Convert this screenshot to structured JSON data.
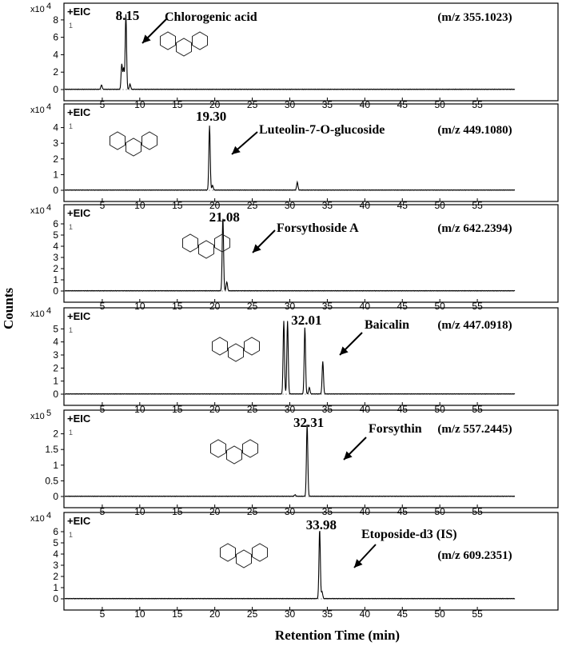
{
  "chart_data": {
    "type": "line",
    "xlabel": "Retention Time (min)",
    "ylabel": "Counts",
    "xlim": [
      0,
      60
    ],
    "xticks": [
      5,
      10,
      15,
      20,
      25,
      30,
      35,
      40,
      45,
      50,
      55
    ],
    "panels": [
      {
        "tag": "+EIC",
        "exponent_label": "x10",
        "exponent": "4",
        "ylim": [
          0,
          9
        ],
        "yticks": [
          0,
          2,
          4,
          6,
          8
        ],
        "compound": "Chlorogenic acid",
        "mz": "(m/z 355.1023)",
        "peak_time": 8.15,
        "peak_label": "8.15",
        "peaks": [
          [
            4.9,
            0.5
          ],
          [
            7.6,
            2.9
          ],
          [
            7.85,
            2.4
          ],
          [
            8.15,
            8.6
          ],
          [
            8.7,
            0.6
          ]
        ]
      },
      {
        "tag": "+EIC",
        "exponent_label": "x10",
        "exponent": "4",
        "ylim": [
          0,
          5
        ],
        "yticks": [
          0,
          1,
          2,
          3,
          4
        ],
        "compound": "Luteolin-7-O-glucoside",
        "mz": "(m/z 449.1080)",
        "peak_time": 19.3,
        "peak_label": "19.30",
        "peaks": [
          [
            19.3,
            4.1
          ],
          [
            19.7,
            0.3
          ],
          [
            31.0,
            0.5
          ]
        ]
      },
      {
        "tag": "+EIC",
        "exponent_label": "x10",
        "exponent": "4",
        "ylim": [
          0,
          7
        ],
        "yticks": [
          0,
          1,
          2,
          3,
          4,
          5,
          6
        ],
        "compound": "Forsythoside A",
        "mz": "(m/z 642.2394)",
        "peak_time": 21.08,
        "peak_label": "21.08",
        "peaks": [
          [
            21.08,
            6.6
          ],
          [
            21.6,
            0.8
          ]
        ]
      },
      {
        "tag": "+EIC",
        "exponent_label": "x10",
        "exponent": "4",
        "ylim": [
          0,
          6
        ],
        "yticks": [
          0,
          1,
          2,
          3,
          4,
          5
        ],
        "compound": "Baicalin",
        "mz": "(m/z 447.0918)",
        "peak_time": 32.01,
        "peak_label": "32.01",
        "peaks": [
          [
            29.2,
            5.6
          ],
          [
            29.7,
            5.6
          ],
          [
            32.01,
            5.1
          ],
          [
            32.6,
            0.5
          ],
          [
            34.4,
            2.5
          ]
        ]
      },
      {
        "tag": "+EIC",
        "exponent_label": "x10",
        "exponent": "5",
        "ylim": [
          0,
          2.5
        ],
        "yticks": [
          0,
          0.5,
          1,
          1.5,
          2
        ],
        "compound": "Forsythin",
        "mz": "(m/z 557.2445)",
        "peak_time": 32.31,
        "peak_label": "32.31",
        "peaks": [
          [
            30.7,
            0.05
          ],
          [
            32.31,
            2.3
          ]
        ]
      },
      {
        "tag": "+EIC",
        "exponent_label": "x10",
        "exponent": "4",
        "ylim": [
          0,
          7
        ],
        "yticks": [
          0,
          1,
          2,
          3,
          4,
          5,
          6
        ],
        "compound": "Etoposide-d3 (IS)",
        "mz": "(m/z 609.2351)",
        "peak_time": 33.98,
        "peak_label": "33.98",
        "peaks": [
          [
            33.98,
            6.2
          ],
          [
            34.3,
            0.6
          ]
        ]
      }
    ]
  }
}
